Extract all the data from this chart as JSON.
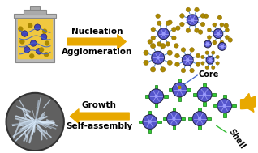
{
  "bg_color": "#ffffff",
  "arrow_color": "#E8A800",
  "text_nucleation": "Nucleation",
  "text_agglomeration": "Agglomeration",
  "text_growth": "Growth",
  "text_selfassembly": "Self-assembly",
  "text_core": "Core",
  "text_shell": "Shell",
  "particle_blue": "#5555CC",
  "spoke_color": "#5588CC",
  "dot_color": "#AA8800",
  "green_bar": "#33CC33",
  "beaker_body": "#BBBBBB",
  "beaker_lip": "#CCCCCC",
  "beaker_liquid": "#F0C840",
  "figsize": [
    3.18,
    1.89
  ],
  "dpi": 100
}
